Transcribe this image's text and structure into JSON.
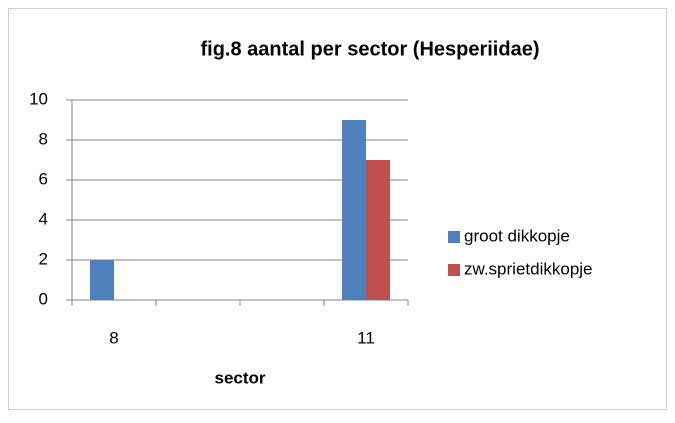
{
  "chart_data": {
    "type": "bar",
    "title": "fig.8 aantal per sector (Hesperiidae)",
    "x_label": "sector",
    "categories": [
      "8",
      null,
      null,
      "11"
    ],
    "series": [
      {
        "name": "groot dikkopje",
        "color": "#4f81bd",
        "values": [
          2,
          null,
          null,
          9
        ]
      },
      {
        "name": "zw.sprietdikkopje",
        "color": "#c0504d",
        "values": [
          null,
          null,
          null,
          7
        ]
      }
    ],
    "ylim": [
      0,
      10
    ],
    "yticks": [
      0,
      2,
      4,
      6,
      8,
      10
    ],
    "grid": true,
    "legend": "right"
  }
}
